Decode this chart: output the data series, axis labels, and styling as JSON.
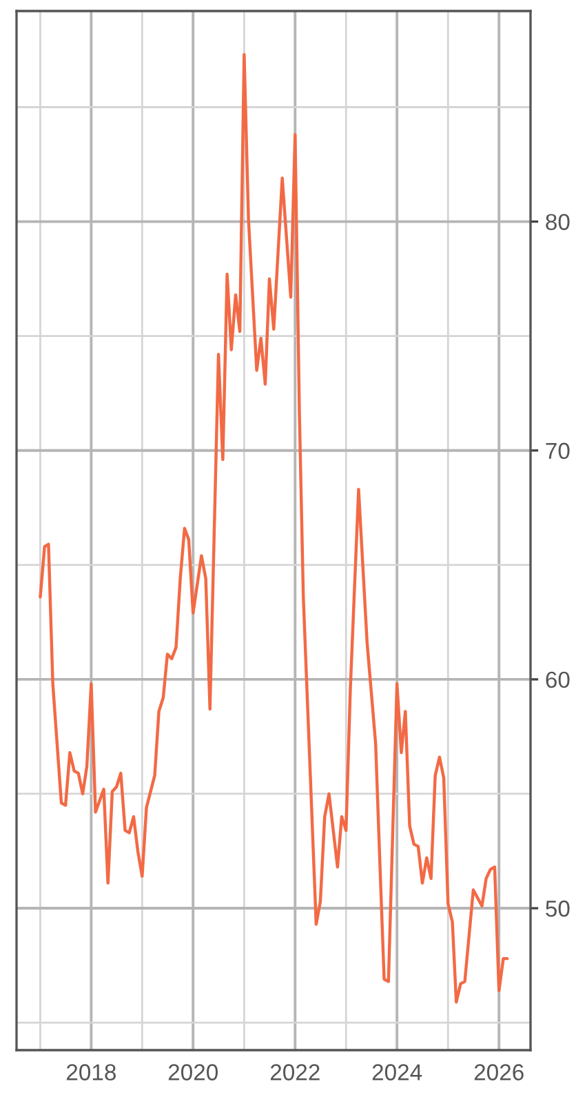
{
  "chart_data": {
    "type": "line",
    "x": [
      "2017-01",
      "2017-02",
      "2017-03",
      "2017-04",
      "2017-06",
      "2017-07",
      "2017-08",
      "2017-09",
      "2017-10",
      "2017-11",
      "2017-12",
      "2018-01",
      "2018-02",
      "2018-04",
      "2018-05",
      "2018-06",
      "2018-07",
      "2018-08",
      "2018-09",
      "2018-10",
      "2018-11",
      "2018-12",
      "2019-01",
      "2019-02",
      "2019-04",
      "2019-05",
      "2019-06",
      "2019-07",
      "2019-08",
      "2019-09",
      "2019-10",
      "2019-11",
      "2019-12",
      "2020-01",
      "2020-03",
      "2020-04",
      "2020-05",
      "2020-07",
      "2020-08",
      "2020-09",
      "2020-10",
      "2020-11",
      "2020-12",
      "2021-01",
      "2021-02",
      "2021-04",
      "2021-05",
      "2021-06",
      "2021-07",
      "2021-08",
      "2021-10",
      "2021-12",
      "2022-01",
      "2022-02",
      "2022-03",
      "2022-06",
      "2022-07",
      "2022-08",
      "2022-09",
      "2022-11",
      "2022-12",
      "2023-01",
      "2023-02",
      "2023-04",
      "2023-06",
      "2023-08",
      "2023-09",
      "2023-10",
      "2023-11",
      "2024-01",
      "2024-02",
      "2024-03",
      "2024-04",
      "2024-05",
      "2024-06",
      "2024-07",
      "2024-08",
      "2024-09",
      "2024-10",
      "2024-11",
      "2024-12",
      "2025-01",
      "2025-02",
      "2025-03",
      "2025-04",
      "2025-05",
      "2025-07",
      "2025-09",
      "2025-10",
      "2025-11",
      "2025-12",
      "2026-01",
      "2026-02",
      "2026-03"
    ],
    "series": [
      {
        "color": "#f26a45",
        "values": [
          63.6,
          65.8,
          65.9,
          59.8,
          54.6,
          54.5,
          56.8,
          56.0,
          55.9,
          55.0,
          56.2,
          59.8,
          54.2,
          55.2,
          51.1,
          55.1,
          55.3,
          55.9,
          53.4,
          53.3,
          54.0,
          52.5,
          51.4,
          54.4,
          55.8,
          58.6,
          59.2,
          61.1,
          60.9,
          61.4,
          64.4,
          66.6,
          66.1,
          62.9,
          65.4,
          64.4,
          58.7,
          74.2,
          69.6,
          77.7,
          74.4,
          76.8,
          75.2,
          87.3,
          80.1,
          73.5,
          74.9,
          72.9,
          77.5,
          75.3,
          81.9,
          76.7,
          83.8,
          71.6,
          63.6,
          49.3,
          50.3,
          54.0,
          55.0,
          51.8,
          54.0,
          53.4,
          59.6,
          68.3,
          61.6,
          57.2,
          51.9,
          46.9,
          46.8,
          59.8,
          56.8,
          58.6,
          53.6,
          52.8,
          52.7,
          51.1,
          52.2,
          51.3,
          55.8,
          56.6,
          55.7,
          50.2,
          49.4,
          45.9,
          46.7,
          46.8,
          50.8,
          50.1,
          51.3,
          51.7,
          51.8,
          46.4,
          47.8,
          47.8
        ]
      }
    ],
    "xlim": [
      "2016-07-15",
      "2026-08-15"
    ],
    "xticks": [
      {
        "value": "2017",
        "label": null
      },
      "2018",
      {
        "value": "2019",
        "label": null
      },
      "2020",
      {
        "value": "2021",
        "label": null
      },
      "2022",
      {
        "value": "2023",
        "label": null
      },
      "2024",
      {
        "value": "2025",
        "label": null
      },
      "2026"
    ],
    "ylim": [
      43.8,
      89.2
    ],
    "yticks": [
      {
        "value": 45,
        "label": null
      },
      50,
      {
        "value": 55,
        "label": null
      },
      60,
      {
        "value": 65,
        "label": null
      },
      70,
      {
        "value": 75,
        "label": null
      },
      80,
      {
        "value": 85,
        "label": null
      }
    ],
    "grid": true,
    "line_style": "solid",
    "marker": "none"
  }
}
